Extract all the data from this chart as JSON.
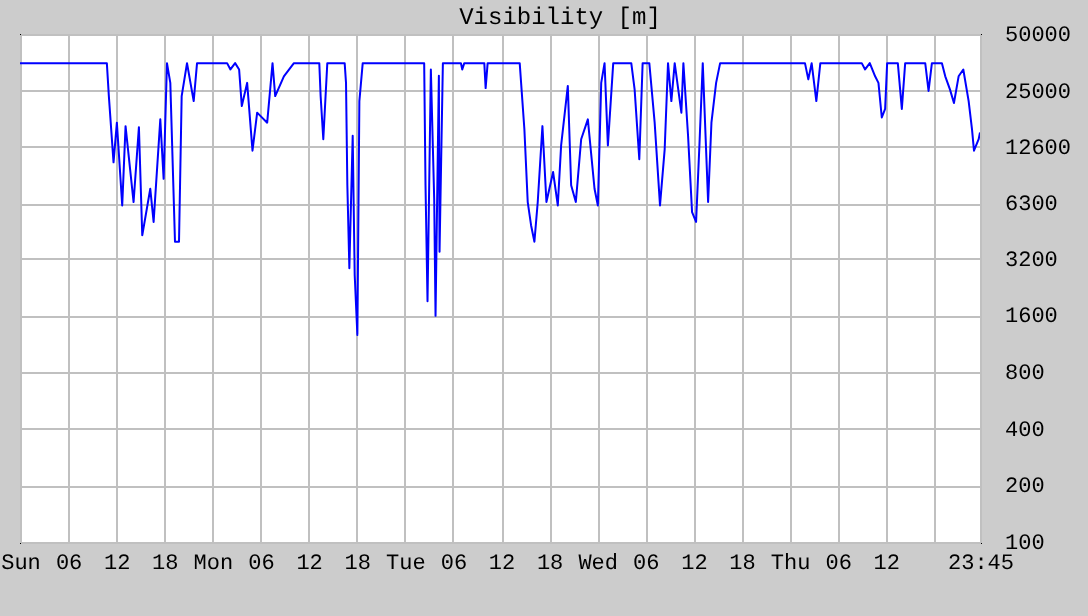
{
  "chart_data": {
    "type": "line",
    "title": "Visibility [m]",
    "log": "y",
    "grid": true,
    "xlim": [
      "--01-05T00:00",
      "--01-09T23:45"
    ],
    "xticks": [
      {
        "value": "--01-05T00:00",
        "label": "Sun"
      },
      {
        "value": "--01-05T06:00",
        "label": "06"
      },
      {
        "value": "--01-05T12:00",
        "label": "12"
      },
      {
        "value": "--01-05T18:00",
        "label": "18"
      },
      {
        "value": "--01-06T00:00",
        "label": "Mon"
      },
      {
        "value": "--01-06T06:00",
        "label": "06"
      },
      {
        "value": "--01-06T12:00",
        "label": "12"
      },
      {
        "value": "--01-06T18:00",
        "label": "18"
      },
      {
        "value": "--01-07T00:00",
        "label": "Tue"
      },
      {
        "value": "--01-07T06:00",
        "label": "06"
      },
      {
        "value": "--01-07T12:00",
        "label": "12"
      },
      {
        "value": "--01-07T18:00",
        "label": "18"
      },
      {
        "value": "--01-08T00:00",
        "label": "Wed"
      },
      {
        "value": "--01-08T06:00",
        "label": "06"
      },
      {
        "value": "--01-08T12:00",
        "label": "12"
      },
      {
        "value": "--01-08T18:00",
        "label": "18"
      },
      {
        "value": "--01-09T00:00",
        "label": "Thu"
      },
      {
        "value": "--01-09T06:00",
        "label": "06"
      },
      {
        "value": "--01-09T12:00",
        "label": "12"
      },
      {
        "value": "--01-09T18:00",
        "label": null
      },
      {
        "value": "--01-09T23:45",
        "label": "23:45"
      }
    ],
    "ylim": [
      100,
      50000
    ],
    "yticks": [
      100,
      200,
      400,
      800,
      1600,
      3200,
      6300,
      12600,
      25000,
      50000
    ],
    "series": [
      {
        "color": "#0000ff",
        "x": [
          "--01-05T00:00",
          "--01-05T10:50",
          "--01-05T11:05",
          "--01-05T11:40",
          "--01-05T12:05",
          "--01-05T12:45",
          "--01-05T13:10",
          "--01-05T14:10",
          "--01-05T14:50",
          "--01-05T15:15",
          "--01-05T16:15",
          "--01-05T16:40",
          "--01-05T17:30",
          "--01-05T17:55",
          "--01-05T18:20",
          "--01-05T18:45",
          "--01-05T19:20",
          "--01-05T19:50",
          "--01-05T20:10",
          "--01-05T20:50",
          "--01-05T21:40",
          "--01-05T22:05",
          "--01-06T01:50",
          "--01-06T02:15",
          "--01-06T02:50",
          "--01-06T03:20",
          "--01-06T03:40",
          "--01-06T04:20",
          "--01-06T05:00",
          "--01-06T05:35",
          "--01-06T06:50",
          "--01-06T07:30",
          "--01-06T07:50",
          "--01-06T08:55",
          "--01-06T10:10",
          "--01-06T13:20",
          "--01-06T13:30",
          "--01-06T13:50",
          "--01-06T14:20",
          "--01-06T16:30",
          "--01-06T16:40",
          "--01-06T16:50",
          "--01-06T17:05",
          "--01-06T17:30",
          "--01-06T17:45",
          "--01-06T18:05",
          "--01-06T18:20",
          "--01-06T18:45",
          "--01-07T02:25",
          "--01-07T02:35",
          "--01-07T02:50",
          "--01-07T03:15",
          "--01-07T03:40",
          "--01-07T03:50",
          "--01-07T04:15",
          "--01-07T04:20",
          "--01-07T04:45",
          "--01-07T07:00",
          "--01-07T07:10",
          "--01-07T07:25",
          "--01-07T09:55",
          "--01-07T10:05",
          "--01-07T10:20",
          "--01-07T14:20",
          "--01-07T14:55",
          "--01-07T15:20",
          "--01-07T15:45",
          "--01-07T16:10",
          "--01-07T16:35",
          "--01-07T17:10",
          "--01-07T17:40",
          "--01-07T18:30",
          "--01-07T19:05",
          "--01-07T19:30",
          "--01-07T20:20",
          "--01-07T20:45",
          "--01-07T21:20",
          "--01-07T22:00",
          "--01-07T22:50",
          "--01-07T23:40",
          "--01-08T00:05",
          "--01-08T00:30",
          "--01-08T00:55",
          "--01-08T01:20",
          "--01-08T02:00",
          "--01-08T04:15",
          "--01-08T04:40",
          "--01-08T05:15",
          "--01-08T05:40",
          "--01-08T06:30",
          "--01-08T07:10",
          "--01-08T07:50",
          "--01-08T08:25",
          "--01-08T08:50",
          "--01-08T09:15",
          "--01-08T09:40",
          "--01-08T10:30",
          "--01-08T10:45",
          "--01-08T11:20",
          "--01-08T11:50",
          "--01-08T12:20",
          "--01-08T12:45",
          "--01-08T13:10",
          "--01-08T13:50",
          "--01-08T14:15",
          "--01-08T14:50",
          "--01-08T15:20",
          "--01-09T01:55",
          "--01-09T02:20",
          "--01-09T02:45",
          "--01-09T03:20",
          "--01-09T03:50",
          "--01-09T09:00",
          "--01-09T09:25",
          "--01-09T10:00",
          "--01-09T10:40",
          "--01-09T11:05",
          "--01-09T11:30",
          "--01-09T11:55",
          "--01-09T12:10",
          "--01-09T13:30",
          "--01-09T14:00",
          "--01-09T14:25",
          "--01-09T16:55",
          "--01-09T17:20",
          "--01-09T17:45",
          "--01-09T19:00",
          "--01-09T19:25",
          "--01-09T20:00",
          "--01-09T20:30",
          "--01-09T21:05",
          "--01-09T21:40",
          "--01-09T22:20",
          "--01-09T22:45",
          "--01-09T23:00",
          "--01-09T23:35",
          "--01-09T23:45"
        ],
        "values": [
          35000,
          35000,
          23400,
          10400,
          16900,
          6140,
          16200,
          6400,
          16000,
          4260,
          7530,
          5020,
          17600,
          8500,
          35000,
          27500,
          3940,
          3940,
          23400,
          35000,
          22000,
          35000,
          35000,
          32400,
          35000,
          32400,
          20700,
          27500,
          12000,
          19100,
          16900,
          35000,
          23400,
          29800,
          35000,
          35000,
          23400,
          13800,
          35000,
          35000,
          27500,
          7850,
          2850,
          14400,
          2620,
          1260,
          22000,
          35000,
          35000,
          7850,
          1900,
          32400,
          6670,
          1590,
          30000,
          3480,
          35000,
          35000,
          32400,
          35000,
          35000,
          25800,
          35000,
          35000,
          15600,
          6400,
          4820,
          3940,
          6400,
          16200,
          6400,
          9240,
          6140,
          12800,
          26500,
          7850,
          6400,
          13800,
          17600,
          7530,
          6140,
          27500,
          35000,
          12800,
          35000,
          35000,
          25400,
          10800,
          35000,
          35000,
          16900,
          6140,
          12200,
          35000,
          22000,
          35000,
          19100,
          35000,
          14400,
          5660,
          5020,
          12800,
          35000,
          6400,
          16900,
          27500,
          35000,
          35000,
          28700,
          35000,
          22000,
          35000,
          35000,
          32400,
          35000,
          29800,
          27500,
          18000,
          20000,
          35000,
          35000,
          20000,
          35000,
          35000,
          24900,
          35000,
          35000,
          29800,
          25400,
          21500,
          29800,
          32400,
          22000,
          15600,
          12000,
          13800,
          15000
        ]
      }
    ]
  }
}
